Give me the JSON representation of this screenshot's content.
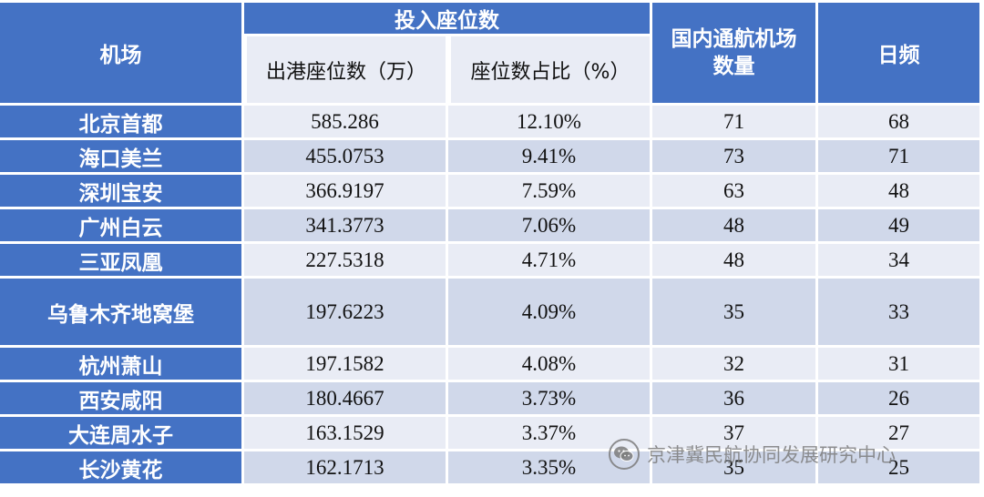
{
  "header": {
    "airport": "机场",
    "seat_group": "投入座位数",
    "outbound_seats": "出港座位数（万）",
    "seat_share": "座位数占比（%）",
    "domestic_airports": "国内通航机场数量",
    "daily_frequency": "日频"
  },
  "rows": [
    {
      "airport": "北京首都",
      "seats": "585.286",
      "share": "12.10%",
      "airports": "71",
      "freq": "68"
    },
    {
      "airport": "海口美兰",
      "seats": "455.0753",
      "share": "9.41%",
      "airports": "73",
      "freq": "71"
    },
    {
      "airport": "深圳宝安",
      "seats": "366.9197",
      "share": "7.59%",
      "airports": "63",
      "freq": "48"
    },
    {
      "airport": "广州白云",
      "seats": "341.3773",
      "share": "7.06%",
      "airports": "48",
      "freq": "49"
    },
    {
      "airport": "三亚凤凰",
      "seats": "227.5318",
      "share": "4.71%",
      "airports": "48",
      "freq": "34"
    },
    {
      "airport": "乌鲁木齐地窝堡",
      "seats": "197.6223",
      "share": "4.09%",
      "airports": "35",
      "freq": "33"
    },
    {
      "airport": "杭州萧山",
      "seats": "197.1582",
      "share": "4.08%",
      "airports": "32",
      "freq": "31"
    },
    {
      "airport": "西安咸阳",
      "seats": "180.4667",
      "share": "3.73%",
      "airports": "36",
      "freq": "26"
    },
    {
      "airport": "大连周水子",
      "seats": "163.1529",
      "share": "3.37%",
      "airports": "37",
      "freq": "27"
    },
    {
      "airport": "长沙黄花",
      "seats": "162.1713",
      "share": "3.35%",
      "airports": "35",
      "freq": "25"
    }
  ],
  "watermark": {
    "text": "京津冀民航协同发展研究中心",
    "icon": "wechat-icon"
  }
}
